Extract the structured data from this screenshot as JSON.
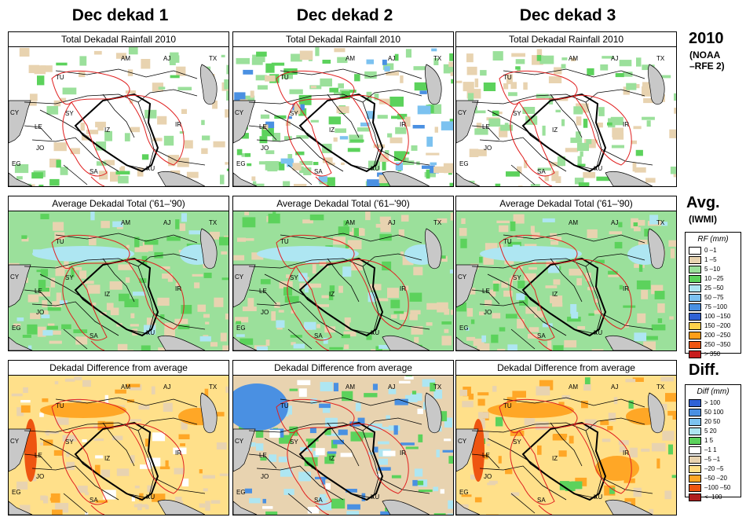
{
  "columns": [
    "Dec dekad 1",
    "Dec dekad 2",
    "Dec dekad 3"
  ],
  "rows": [
    {
      "panel_title": "Total Dekadal Rainfall 2010",
      "side_title": "2010",
      "side_sub": [
        "(NOAA",
        "–RFE 2)"
      ]
    },
    {
      "panel_title": "Average Dekadal Total ('61–'90)",
      "side_title": "Avg.",
      "side_sub": [
        "(IWMI)"
      ]
    },
    {
      "panel_title": "Dekadal Difference from average",
      "side_title": "Diff.",
      "side_sub": []
    }
  ],
  "country_labels": [
    "AM",
    "AJ",
    "TX",
    "TU",
    "CY",
    "SY",
    "IR",
    "LE",
    "IZ",
    "JO",
    "EG",
    "SA",
    "KU"
  ],
  "legend_rf": {
    "title": "RF (mm)",
    "items": [
      {
        "label": "0 –1",
        "color": "#ffffff"
      },
      {
        "label": "1 –5",
        "color": "#e8d3b0"
      },
      {
        "label": "5 –10",
        "color": "#9be09b"
      },
      {
        "label": "10 –25",
        "color": "#5cd25c"
      },
      {
        "label": "25 –50",
        "color": "#aee6f2"
      },
      {
        "label": "50 –75",
        "color": "#7cc2f0"
      },
      {
        "label": "75 –100",
        "color": "#4a90e2"
      },
      {
        "label": "100 –150",
        "color": "#2f62d6"
      },
      {
        "label": "150 –200",
        "color": "#ffd24a"
      },
      {
        "label": "200 –250",
        "color": "#ff9e1a"
      },
      {
        "label": "250 –350",
        "color": "#ee5511"
      },
      {
        "label": "> 350",
        "color": "#c81e1e"
      }
    ]
  },
  "legend_diff": {
    "title": "Diff (mm)",
    "items": [
      {
        "label": "> 100",
        "color": "#2f62d6"
      },
      {
        "label": "50  100",
        "color": "#4a90e2"
      },
      {
        "label": "20  50",
        "color": "#7cc2f0"
      },
      {
        "label": "5  20",
        "color": "#aee6f2"
      },
      {
        "label": "1  5",
        "color": "#5cd25c"
      },
      {
        "label": "–1  1",
        "color": "#ffffff"
      },
      {
        "label": "–5  –1",
        "color": "#e8d3b0"
      },
      {
        "label": "–20  –5",
        "color": "#ffe08a"
      },
      {
        "label": "–50  –20",
        "color": "#ffa726"
      },
      {
        "label": "–100  –50",
        "color": "#ee5511"
      },
      {
        "label": "<–100",
        "color": "#b01e1e"
      }
    ]
  }
}
